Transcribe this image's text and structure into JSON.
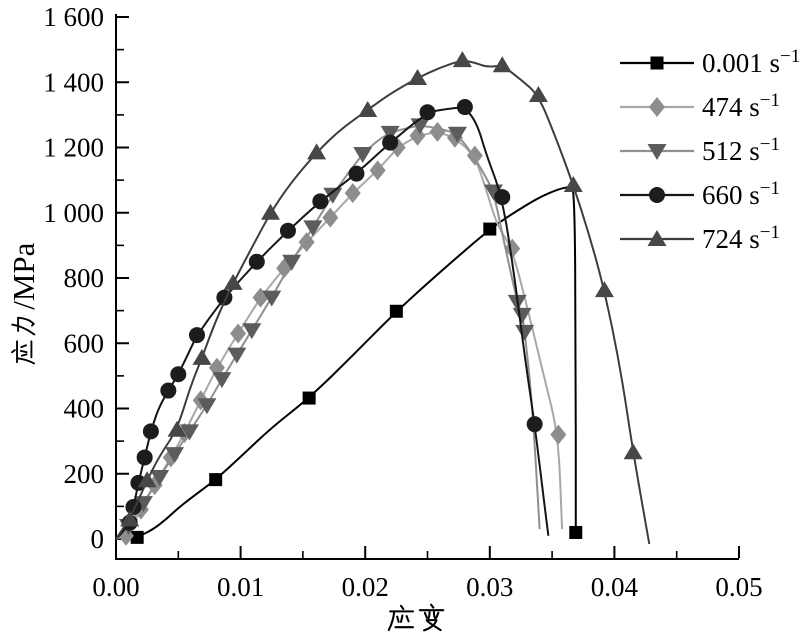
{
  "figure": {
    "background": "#ffffff",
    "text_color": "#000000"
  },
  "chart_data": {
    "type": "line",
    "title": "",
    "xlabel": "应变",
    "ylabel": "应力/MPa",
    "xlim": [
      0,
      0.05
    ],
    "ylim": [
      0,
      1600
    ],
    "grid": false,
    "legend_position": "top-right",
    "x_ticks": {
      "values": [
        0,
        0.01,
        0.02,
        0.03,
        0.04,
        0.05
      ],
      "labels": [
        "0.00",
        "0.01",
        "0.02",
        "0.03",
        "0.04",
        "0.05"
      ],
      "minor": [
        0.005,
        0.015,
        0.025,
        0.035,
        0.045
      ]
    },
    "y_ticks": {
      "values": [
        0,
        200,
        400,
        600,
        800,
        1000,
        1200,
        1400,
        1600
      ],
      "labels": [
        "0",
        "200",
        "400",
        "600",
        "800",
        "1 000",
        "1 200",
        "1 400",
        "1 600"
      ],
      "minor": [
        100,
        300,
        500,
        700,
        900,
        1100,
        1300,
        1500
      ]
    },
    "series": [
      {
        "key": "rate-0p001",
        "label": "0.001 s⁻¹",
        "label_base": "0.001 s",
        "label_sup": "−1",
        "marker": "square",
        "line_color": "#000000",
        "marker_color": "#000000",
        "points": [
          [
            0,
            0
          ],
          [
            0.0017,
            5
          ],
          [
            0.003,
            30
          ],
          [
            0.004,
            60
          ],
          [
            0.005,
            95
          ],
          [
            0.006,
            125
          ],
          [
            0.008,
            182
          ],
          [
            0.01,
            252
          ],
          [
            0.0125,
            342
          ],
          [
            0.0155,
            432
          ],
          [
            0.019,
            562
          ],
          [
            0.0225,
            698
          ],
          [
            0.026,
            818
          ],
          [
            0.03,
            950
          ],
          [
            0.032,
            1002
          ],
          [
            0.034,
            1048
          ],
          [
            0.0355,
            1072
          ],
          [
            0.0364,
            1080
          ],
          [
            0.0368,
            1076
          ],
          [
            0.0369,
            600
          ],
          [
            0.0369,
            20
          ]
        ],
        "markers": [
          [
            0.0017,
            5
          ],
          [
            0.008,
            182
          ],
          [
            0.0155,
            432
          ],
          [
            0.0225,
            698
          ],
          [
            0.03,
            950
          ],
          [
            0.0369,
            20
          ]
        ]
      },
      {
        "key": "rate-474",
        "label": "474 s⁻¹",
        "label_base": "474 s",
        "label_sup": "−1",
        "marker": "diamond",
        "line_color": "#a8a8a8",
        "marker_color": "#8d8d8d",
        "points": [
          [
            0,
            0
          ],
          [
            0.0008,
            10
          ],
          [
            0.0015,
            55
          ],
          [
            0.002,
            90
          ],
          [
            0.0031,
            165
          ],
          [
            0.0044,
            250
          ],
          [
            0.0055,
            325
          ],
          [
            0.0068,
            425
          ],
          [
            0.0081,
            525
          ],
          [
            0.0098,
            630
          ],
          [
            0.0116,
            740
          ],
          [
            0.0135,
            830
          ],
          [
            0.0153,
            910
          ],
          [
            0.0172,
            985
          ],
          [
            0.019,
            1060
          ],
          [
            0.021,
            1130
          ],
          [
            0.0226,
            1200
          ],
          [
            0.0242,
            1236
          ],
          [
            0.0258,
            1248
          ],
          [
            0.0272,
            1230
          ],
          [
            0.0288,
            1175
          ],
          [
            0.0298,
            1060
          ],
          [
            0.0306,
            960
          ],
          [
            0.0318,
            890
          ],
          [
            0.0332,
            680
          ],
          [
            0.0344,
            490
          ],
          [
            0.0355,
            320
          ],
          [
            0.0358,
            30
          ]
        ],
        "markers": [
          [
            0.0008,
            10
          ],
          [
            0.002,
            90
          ],
          [
            0.0031,
            165
          ],
          [
            0.0044,
            250
          ],
          [
            0.0055,
            325
          ],
          [
            0.0068,
            425
          ],
          [
            0.0081,
            525
          ],
          [
            0.0098,
            630
          ],
          [
            0.0116,
            740
          ],
          [
            0.0135,
            830
          ],
          [
            0.0153,
            910
          ],
          [
            0.0172,
            985
          ],
          [
            0.019,
            1060
          ],
          [
            0.021,
            1130
          ],
          [
            0.0226,
            1200
          ],
          [
            0.0242,
            1236
          ],
          [
            0.0258,
            1248
          ],
          [
            0.0272,
            1230
          ],
          [
            0.0288,
            1175
          ],
          [
            0.0318,
            890
          ],
          [
            0.0355,
            320
          ]
        ]
      },
      {
        "key": "rate-512",
        "label": "512 s⁻¹",
        "label_base": "512 s",
        "label_sup": "−1",
        "marker": "triangle-down",
        "line_color": "#8f8f8f",
        "marker_color": "#5c5c5c",
        "points": [
          [
            0,
            0
          ],
          [
            0.001,
            40
          ],
          [
            0.0022,
            110
          ],
          [
            0.0035,
            190
          ],
          [
            0.0047,
            260
          ],
          [
            0.0059,
            330
          ],
          [
            0.0073,
            410
          ],
          [
            0.0085,
            490
          ],
          [
            0.0097,
            565
          ],
          [
            0.0109,
            640
          ],
          [
            0.0125,
            740
          ],
          [
            0.0141,
            850
          ],
          [
            0.0158,
            955
          ],
          [
            0.0174,
            1055
          ],
          [
            0.0186,
            1120
          ],
          [
            0.0198,
            1180
          ],
          [
            0.021,
            1222
          ],
          [
            0.022,
            1245
          ],
          [
            0.0232,
            1258
          ],
          [
            0.0244,
            1268
          ],
          [
            0.026,
            1258
          ],
          [
            0.0274,
            1242
          ],
          [
            0.0288,
            1168
          ],
          [
            0.0296,
            1115
          ],
          [
            0.0303,
            1065
          ],
          [
            0.0312,
            900
          ],
          [
            0.0322,
            727
          ],
          [
            0.0326,
            687
          ],
          [
            0.0328,
            635
          ],
          [
            0.0334,
            420
          ],
          [
            0.034,
            30
          ]
        ],
        "markers": [
          [
            0.001,
            40
          ],
          [
            0.0022,
            110
          ],
          [
            0.0035,
            190
          ],
          [
            0.0047,
            260
          ],
          [
            0.0059,
            330
          ],
          [
            0.0073,
            410
          ],
          [
            0.0085,
            490
          ],
          [
            0.0097,
            565
          ],
          [
            0.0109,
            640
          ],
          [
            0.0125,
            740
          ],
          [
            0.0141,
            850
          ],
          [
            0.0158,
            955
          ],
          [
            0.0174,
            1055
          ],
          [
            0.0198,
            1180
          ],
          [
            0.022,
            1245
          ],
          [
            0.0244,
            1268
          ],
          [
            0.0274,
            1242
          ],
          [
            0.0303,
            1065
          ],
          [
            0.0322,
            727
          ],
          [
            0.0326,
            687
          ],
          [
            0.0328,
            635
          ]
        ]
      },
      {
        "key": "rate-660",
        "label": "660 s⁻¹",
        "label_base": "660 s",
        "label_sup": "−1",
        "marker": "circle",
        "line_color": "#141414",
        "marker_color": "#1c1c1c",
        "points": [
          [
            0,
            0
          ],
          [
            0.0005,
            20
          ],
          [
            0.0011,
            50
          ],
          [
            0.0014,
            98
          ],
          [
            0.0018,
            172
          ],
          [
            0.0023,
            250
          ],
          [
            0.0028,
            330
          ],
          [
            0.0034,
            400
          ],
          [
            0.0042,
            455
          ],
          [
            0.005,
            505
          ],
          [
            0.0058,
            568
          ],
          [
            0.0065,
            625
          ],
          [
            0.0087,
            740
          ],
          [
            0.0113,
            850
          ],
          [
            0.0138,
            945
          ],
          [
            0.0164,
            1035
          ],
          [
            0.0193,
            1120
          ],
          [
            0.022,
            1215
          ],
          [
            0.025,
            1308
          ],
          [
            0.0265,
            1318
          ],
          [
            0.028,
            1324
          ],
          [
            0.029,
            1272
          ],
          [
            0.0297,
            1180
          ],
          [
            0.031,
            1048
          ],
          [
            0.032,
            800
          ],
          [
            0.0328,
            560
          ],
          [
            0.0336,
            352
          ],
          [
            0.0344,
            100
          ],
          [
            0.0347,
            10
          ]
        ],
        "markers": [
          [
            0.0011,
            50
          ],
          [
            0.0014,
            98
          ],
          [
            0.0018,
            172
          ],
          [
            0.0023,
            250
          ],
          [
            0.0028,
            330
          ],
          [
            0.0042,
            455
          ],
          [
            0.005,
            505
          ],
          [
            0.0065,
            625
          ],
          [
            0.0087,
            740
          ],
          [
            0.0113,
            850
          ],
          [
            0.0138,
            945
          ],
          [
            0.0164,
            1035
          ],
          [
            0.0193,
            1120
          ],
          [
            0.022,
            1215
          ],
          [
            0.025,
            1308
          ],
          [
            0.028,
            1324
          ],
          [
            0.031,
            1048
          ],
          [
            0.0336,
            352
          ]
        ]
      },
      {
        "key": "rate-724",
        "label": "724 s⁻¹",
        "label_base": "724 s",
        "label_sup": "−1",
        "marker": "triangle-up",
        "line_color": "#3d3d3d",
        "marker_color": "#474747",
        "points": [
          [
            0,
            0
          ],
          [
            0.0011,
            60
          ],
          [
            0.0025,
            180
          ],
          [
            0.0035,
            255
          ],
          [
            0.0049,
            335
          ],
          [
            0.006,
            470
          ],
          [
            0.0069,
            555
          ],
          [
            0.008,
            670
          ],
          [
            0.0094,
            785
          ],
          [
            0.011,
            900
          ],
          [
            0.0124,
            1000
          ],
          [
            0.014,
            1090
          ],
          [
            0.0161,
            1185
          ],
          [
            0.018,
            1255
          ],
          [
            0.0202,
            1315
          ],
          [
            0.022,
            1365
          ],
          [
            0.0242,
            1413
          ],
          [
            0.026,
            1445
          ],
          [
            0.0278,
            1468
          ],
          [
            0.0288,
            1460
          ],
          [
            0.0298,
            1446
          ],
          [
            0.031,
            1452
          ],
          [
            0.0325,
            1408
          ],
          [
            0.0339,
            1361
          ],
          [
            0.0353,
            1230
          ],
          [
            0.0367,
            1085
          ],
          [
            0.038,
            930
          ],
          [
            0.0392,
            763
          ],
          [
            0.0405,
            520
          ],
          [
            0.0415,
            266
          ],
          [
            0.0428,
            -15
          ]
        ],
        "markers": [
          [
            0.0011,
            60
          ],
          [
            0.0025,
            180
          ],
          [
            0.0049,
            335
          ],
          [
            0.0069,
            555
          ],
          [
            0.0094,
            785
          ],
          [
            0.0124,
            1000
          ],
          [
            0.0161,
            1185
          ],
          [
            0.0202,
            1315
          ],
          [
            0.0242,
            1413
          ],
          [
            0.0278,
            1468
          ],
          [
            0.031,
            1452
          ],
          [
            0.0339,
            1361
          ],
          [
            0.0367,
            1085
          ],
          [
            0.0392,
            763
          ],
          [
            0.0415,
            266
          ]
        ]
      }
    ]
  }
}
